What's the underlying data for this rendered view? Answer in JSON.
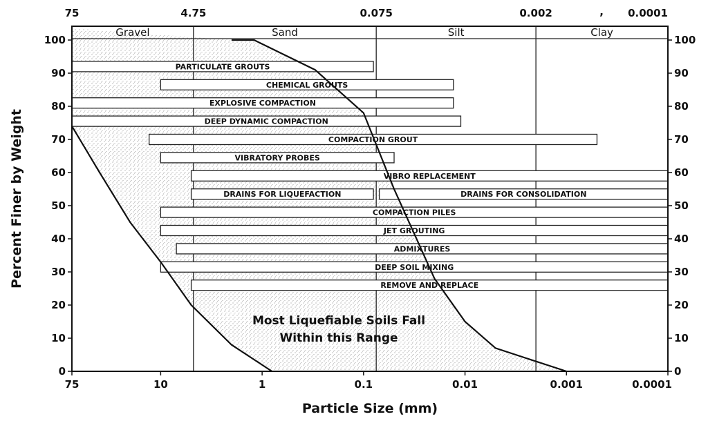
{
  "chart_data": {
    "type": "bar",
    "xlabel": "Particle Size (mm)",
    "ylabel": "Percent Finer by Weight",
    "x_scale": "log",
    "x_reversed": true,
    "xlim": [
      75,
      0.0001
    ],
    "ylim": [
      0,
      105
    ],
    "x_ticks": [
      75,
      10,
      1,
      0.1,
      0.01,
      0.001,
      0.0001
    ],
    "x_tick_labels": [
      "75",
      "10",
      "1",
      "0.1",
      "0.01",
      "0.001",
      "0.0001"
    ],
    "y_ticks": [
      0,
      10,
      20,
      30,
      40,
      50,
      60,
      70,
      80,
      90,
      100
    ],
    "y_tick_labels": [
      "0",
      "10",
      "20",
      "30",
      "40",
      "50",
      "60",
      "70",
      "80",
      "90",
      "100"
    ],
    "top_boundaries": [
      {
        "label": "75",
        "x": 75
      },
      {
        "label": "4.75",
        "x": 4.75
      },
      {
        "label": "0.075",
        "x": 0.075
      },
      {
        "label": "0.002",
        "x": 0.002
      },
      {
        "label": "0.0001",
        "x": 0.0001
      }
    ],
    "top_stray_mark": {
      "label": ",",
      "x": 0.00045
    },
    "soil_bands": [
      {
        "name": "Gravel",
        "from": 75,
        "to": 4.75
      },
      {
        "name": "Sand",
        "from": 4.75,
        "to": 0.075
      },
      {
        "name": "Silt",
        "from": 0.075,
        "to": 0.002
      },
      {
        "name": "Clay",
        "from": 0.002,
        "to": 0.0001
      }
    ],
    "methods": [
      {
        "name": "PARTICULATE GROUTS",
        "from": 75,
        "to": 0.08,
        "y": 92
      },
      {
        "name": "CHEMICAL GROUTS",
        "from": 10,
        "to": 0.013,
        "y": 86.5
      },
      {
        "name": "EXPLOSIVE COMPACTION",
        "from": 75,
        "to": 0.013,
        "y": 81
      },
      {
        "name": "DEEP DYNAMIC COMPACTION",
        "from": 75,
        "to": 0.011,
        "y": 75.5
      },
      {
        "name": "COMPACTION GROUT",
        "from": 13,
        "to": 0.0005,
        "y": 70
      },
      {
        "name": "VIBRATORY PROBES",
        "from": 10,
        "to": 0.05,
        "y": 64.5
      },
      {
        "name": "VIBRO REPLACEMENT",
        "from": 5,
        "to": 0.0001,
        "y": 59
      },
      {
        "name": "DRAINS FOR LIQUEFACTION",
        "from": 5,
        "to": 0.08,
        "y": 53.5
      },
      {
        "name": "DRAINS FOR CONSOLIDATION",
        "from": 0.07,
        "to": 0.0001,
        "y": 53.5
      },
      {
        "name": "COMPACTION PILES",
        "from": 10,
        "to": 0.0001,
        "y": 48
      },
      {
        "name": "JET GROUTING",
        "from": 10,
        "to": 0.0001,
        "y": 42.5
      },
      {
        "name": "ADMIXTURES",
        "from": 7,
        "to": 0.0001,
        "y": 37
      },
      {
        "name": "DEEP SOIL MIXING",
        "from": 10,
        "to": 0.0001,
        "y": 31.5
      },
      {
        "name": "REMOVE AND REPLACE",
        "from": 5,
        "to": 0.0001,
        "y": 26
      }
    ],
    "liquefiable_range": {
      "coarse_bound": [
        [
          75,
          74
        ],
        [
          40,
          60
        ],
        [
          20,
          45
        ],
        [
          10,
          33
        ],
        [
          5,
          20
        ],
        [
          2,
          8
        ],
        [
          0.8,
          0
        ]
      ],
      "fine_bound": [
        [
          2,
          100
        ],
        [
          1.2,
          100
        ],
        [
          0.3,
          91
        ],
        [
          0.1,
          78
        ],
        [
          0.05,
          55
        ],
        [
          0.02,
          28
        ],
        [
          0.01,
          15
        ],
        [
          0.005,
          7
        ],
        [
          0.002,
          3
        ],
        [
          0.001,
          0
        ]
      ]
    },
    "annotation": [
      "Most Liquefiable Soils Fall",
      "Within this Range"
    ]
  }
}
